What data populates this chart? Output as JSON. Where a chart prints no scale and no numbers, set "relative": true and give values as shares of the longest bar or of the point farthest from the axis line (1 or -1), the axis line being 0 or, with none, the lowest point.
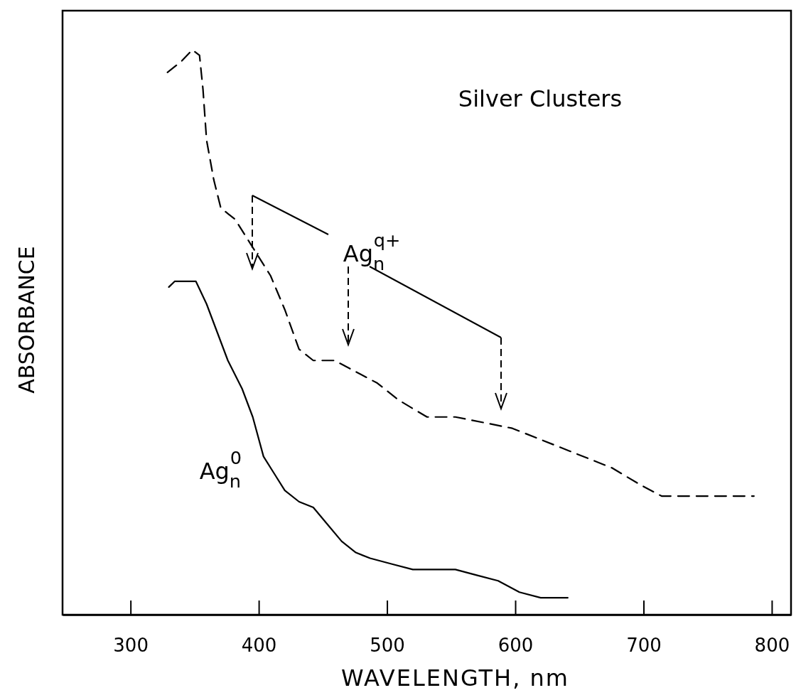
{
  "chart_data": {
    "type": "line",
    "title": "Silver Clusters",
    "xlabel": "WAVELENGTH, nm",
    "ylabel": "ABSORBANCE",
    "relative": true,
    "legend": false,
    "grid": false,
    "xlim": [
      247,
      815
    ],
    "xticks": [
      300,
      400,
      500,
      600,
      700,
      800
    ],
    "series": [
      {
        "name": "Ag$_{n}$$^{q+}$",
        "color": "#000000",
        "line_style": "dashed",
        "x": [
          328.8,
          339.9,
          348.2,
          353.8,
          356.5,
          359.3,
          364.9,
          370.4,
          375.9,
          381.5,
          389.8,
          398.1,
          409.2,
          420.3,
          431.4,
          442.5,
          459.1,
          475.7,
          492.4,
          509.0,
          531.2,
          553.3,
          575.5,
          597.7,
          619.8,
          642.0,
          675.3,
          697.5,
          714.1,
          736.3,
          752.9,
          769.5,
          786.1
        ],
        "values": [
          0.96,
          0.98,
          1,
          0.99,
          0.93,
          0.84,
          0.77,
          0.72,
          0.71,
          0.7,
          0.67,
          0.64,
          0.6,
          0.54,
          0.47,
          0.45,
          0.45,
          0.43,
          0.41,
          0.38,
          0.35,
          0.35,
          0.34,
          0.33,
          0.31,
          0.29,
          0.26,
          0.23,
          0.21,
          0.21,
          0.21,
          0.21,
          0.21
        ]
      },
      {
        "name": "Ag$_{n}$$^{0}$",
        "color": "#000000",
        "line_style": "solid",
        "x": [
          329.9,
          334.4,
          342.7,
          351.0,
          359.3,
          367.6,
          375.9,
          387.0,
          395.3,
          403.7,
          412.0,
          420.3,
          431.4,
          442.5,
          453.5,
          464.6,
          475.7,
          486.8,
          503.4,
          520.1,
          536.7,
          553.3,
          569.9,
          586.6,
          603.2,
          619.8,
          640.9
        ],
        "values": [
          0.58,
          0.59,
          0.59,
          0.59,
          0.55,
          0.5,
          0.45,
          0.4,
          0.35,
          0.28,
          0.25,
          0.22,
          0.2,
          0.19,
          0.16,
          0.13,
          0.11,
          0.1,
          0.09,
          0.08,
          0.08,
          0.08,
          0.07,
          0.06,
          0.04,
          0.03,
          0.03
        ]
      }
    ]
  }
}
